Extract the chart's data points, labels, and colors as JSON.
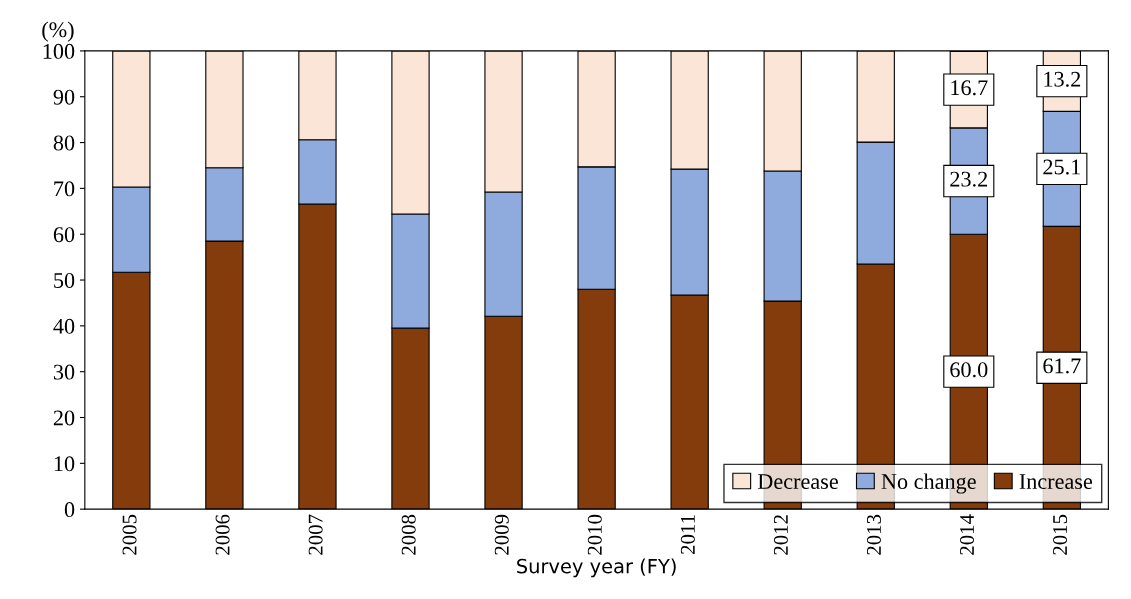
{
  "chart_data": {
    "type": "bar",
    "stacked": true,
    "xlabel": "Survey year (FY)",
    "ylabel": "(%)",
    "categories": [
      "2005",
      "2006",
      "2007",
      "2008",
      "2009",
      "2010",
      "2011",
      "2012",
      "2013",
      "2014",
      "2015"
    ],
    "series": [
      {
        "name": "Increase",
        "color": "#843c0c",
        "values": [
          51.7,
          58.5,
          66.6,
          39.5,
          42.1,
          48.0,
          46.7,
          45.4,
          53.5,
          60.0,
          61.7
        ],
        "value_labels": [
          null,
          null,
          null,
          null,
          null,
          null,
          null,
          null,
          null,
          "60.0",
          "61.7"
        ]
      },
      {
        "name": "No change",
        "color": "#8faadc",
        "values": [
          18.6,
          16.0,
          14.0,
          24.9,
          27.1,
          26.7,
          27.5,
          28.4,
          26.6,
          23.2,
          25.1
        ],
        "value_labels": [
          null,
          null,
          null,
          null,
          null,
          null,
          null,
          null,
          null,
          "23.2",
          "25.1"
        ]
      },
      {
        "name": "Decrease",
        "color": "#fbe5d6",
        "values": [
          29.7,
          25.5,
          19.4,
          35.6,
          30.8,
          25.3,
          25.8,
          26.2,
          19.9,
          16.7,
          13.2
        ],
        "value_labels": [
          null,
          null,
          null,
          null,
          null,
          null,
          null,
          null,
          null,
          "16.7",
          "13.2"
        ]
      }
    ],
    "ylim": [
      0,
      100
    ],
    "yticks": [
      0,
      10,
      20,
      30,
      40,
      50,
      60,
      70,
      80,
      90,
      100
    ],
    "grid": false,
    "legend": "bottom right"
  }
}
